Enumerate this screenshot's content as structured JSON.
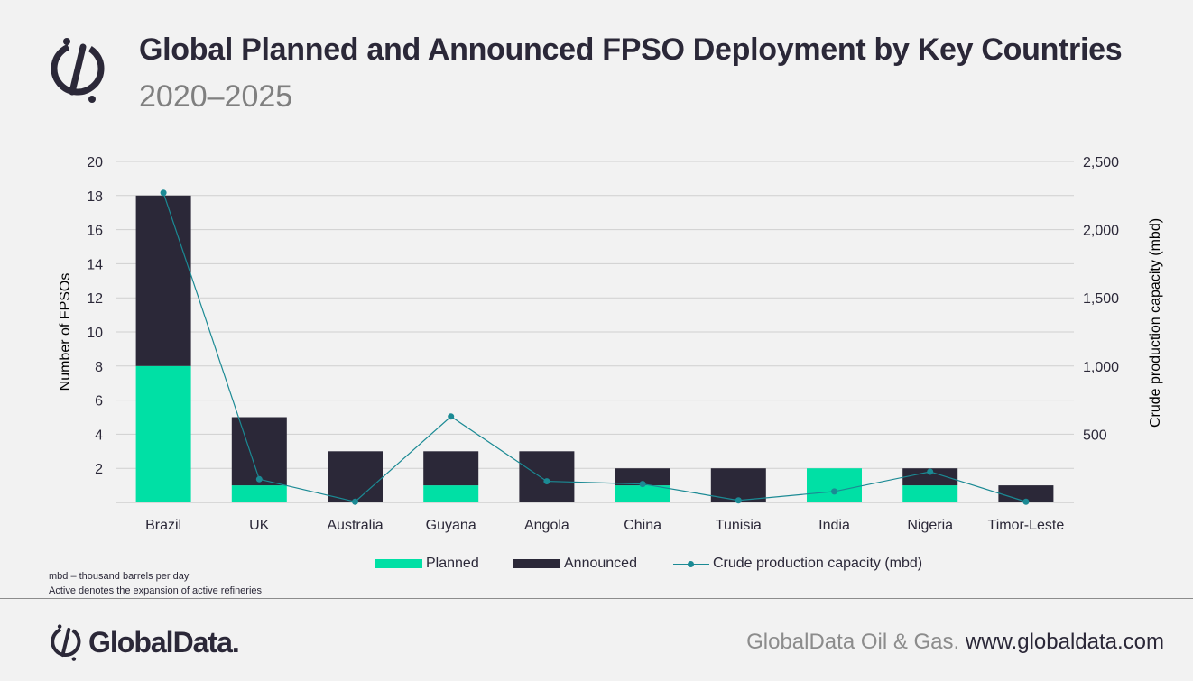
{
  "header": {
    "title": "Global Planned and Announced FPSO Deployment by Key Countries",
    "subtitle": "2020–2025"
  },
  "chart_data": {
    "type": "bar",
    "stacked": true,
    "categories": [
      "Brazil",
      "UK",
      "Australia",
      "Guyana",
      "Angola",
      "China",
      "Tunisia",
      "India",
      "Nigeria",
      "Timor-Leste"
    ],
    "series": [
      {
        "name": "Planned",
        "type": "bar",
        "axis": "left",
        "color": "#00e0a5",
        "values": [
          8,
          1,
          0,
          1,
          0,
          1,
          0,
          2,
          1,
          0
        ]
      },
      {
        "name": "Announced",
        "type": "bar",
        "axis": "left",
        "color": "#2b2838",
        "values": [
          10,
          4,
          3,
          2,
          3,
          1,
          2,
          0,
          1,
          1
        ]
      },
      {
        "name": "Crude production capacity (mbd)",
        "type": "line",
        "axis": "right",
        "color": "#1b8a94",
        "values": [
          2270,
          170,
          5,
          630,
          155,
          135,
          15,
          80,
          225,
          5
        ]
      }
    ],
    "ylabel": "Number of FPSOs",
    "y2label": "Crude production capacity (mbd)",
    "ylim": [
      0,
      20
    ],
    "y2lim": [
      0,
      2500
    ],
    "yticks": [
      "2",
      "4",
      "6",
      "8",
      "10",
      "12",
      "14",
      "16",
      "18",
      "20"
    ],
    "y2ticks": [
      "500",
      "1,000",
      "1,500",
      "2,000",
      "2,500"
    ],
    "grid": true,
    "legend": "bottom"
  },
  "legend": {
    "planned": "Planned",
    "announced": "Announced",
    "line": "Crude production capacity (mbd)"
  },
  "notes": {
    "line1": "mbd – thousand barrels per day",
    "line2": "Active denotes  the  expansion of active refineries"
  },
  "footer": {
    "logo_text": "GlobalData.",
    "source_grey": "GlobalData Oil & Gas.",
    "source_url": "www.globaldata.com"
  },
  "colors": {
    "planned": "#00e0a5",
    "announced": "#2b2838",
    "line": "#1b8a94",
    "background": "#f2f2f2"
  },
  "icons": [
    "globaldata-logo-icon"
  ]
}
